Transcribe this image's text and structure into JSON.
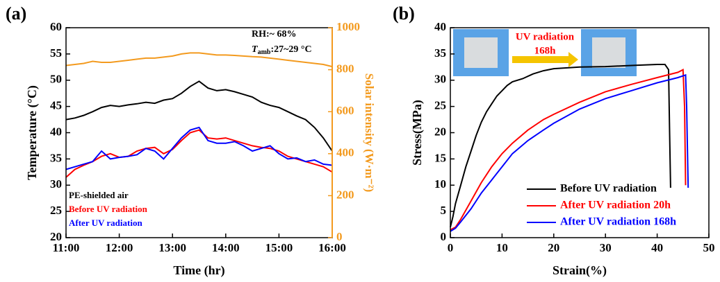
{
  "chart_data": [
    {
      "type": "line",
      "panel_label": "(a)",
      "x_label": "Time (hr)",
      "y_label": "Temperature (°C)",
      "y2_label": "Solar intensity (W·m⁻²)",
      "xlim": [
        11,
        16
      ],
      "ylim": [
        20,
        60
      ],
      "y2lim": [
        0,
        1000
      ],
      "xticks": [
        {
          "value": 11,
          "label": "11:00"
        },
        {
          "value": 12,
          "label": "12:00"
        },
        {
          "value": 13,
          "label": "13:00"
        },
        {
          "value": 14,
          "label": "14:00"
        },
        {
          "value": 15,
          "label": "15:00"
        },
        {
          "value": 16,
          "label": "16:00"
        }
      ],
      "yticks": [
        20,
        25,
        30,
        35,
        40,
        45,
        50,
        55,
        60
      ],
      "y2ticks": [
        0,
        200,
        400,
        600,
        800,
        1000
      ],
      "y2color": "#f39a1e",
      "annotations": [
        "RH:~ 68%",
        {
          "symbol": "T",
          "subscript": "amb",
          "text": ":27~29 °C"
        }
      ],
      "legend": "lower left",
      "x": [
        11,
        11.1667,
        11.3333,
        11.5,
        11.6667,
        11.8333,
        12,
        12.1667,
        12.3333,
        12.5,
        12.6667,
        12.8333,
        13,
        13.1667,
        13.3333,
        13.5,
        13.6667,
        13.8333,
        14,
        14.1667,
        14.3333,
        14.5,
        14.6667,
        14.8333,
        15,
        15.1667,
        15.3333,
        15.5,
        15.6667,
        15.8333,
        16
      ],
      "series": [
        {
          "name": "PE-shielded air",
          "color": "#000000",
          "values": [
            42.5,
            42.8,
            43.3,
            44,
            44.8,
            45.2,
            45,
            45.3,
            45.5,
            45.8,
            45.6,
            46.2,
            46.5,
            47.5,
            48.8,
            49.8,
            48.5,
            48,
            48.2,
            47.8,
            47.3,
            46.8,
            45.8,
            45.2,
            44.8,
            44,
            43.2,
            42.5,
            41,
            39,
            36.5
          ]
        },
        {
          "name": "Before UV radiation",
          "color": "#ff0000",
          "values": [
            31.5,
            33,
            33.8,
            34.5,
            35.5,
            36,
            35.3,
            35.5,
            36.5,
            37,
            37.2,
            36,
            36.8,
            38.5,
            40,
            40.5,
            39,
            38.8,
            39,
            38.5,
            38,
            37.5,
            37.2,
            37,
            36.5,
            35.5,
            35,
            34.5,
            34,
            33.5,
            32.5
          ]
        },
        {
          "name": "After UV radiation",
          "color": "#0000ff",
          "values": [
            33,
            33.5,
            34,
            34.5,
            36.5,
            35,
            35.3,
            35.5,
            35.8,
            37,
            36.5,
            35,
            37,
            39,
            40.5,
            41,
            38.5,
            38,
            38,
            38.3,
            37.5,
            36.5,
            37,
            37.5,
            36,
            35,
            35.2,
            34.5,
            34.8,
            34,
            33.8
          ]
        },
        {
          "name": null,
          "color": "#f39a1e",
          "axis": "y2",
          "values": [
            820,
            825,
            830,
            840,
            835,
            835,
            840,
            845,
            850,
            855,
            855,
            860,
            865,
            875,
            880,
            880,
            875,
            870,
            870,
            868,
            865,
            862,
            860,
            855,
            850,
            845,
            840,
            835,
            830,
            825,
            815
          ]
        }
      ]
    },
    {
      "type": "line",
      "panel_label": "(b)",
      "x_label": "Strain(%)",
      "y_label": "Stress(MPa)",
      "xlim": [
        0,
        50
      ],
      "ylim": [
        0,
        40
      ],
      "xticks": [
        0,
        10,
        20,
        30,
        40,
        50
      ],
      "yticks": [
        0,
        5,
        10,
        15,
        20,
        25,
        30,
        35,
        40
      ],
      "inset": [
        "UV radiation",
        "168h"
      ],
      "legend": "lower right",
      "series": [
        {
          "name": "Before UV radiation",
          "color": "#000000",
          "x": [
            0,
            0.5,
            1,
            2,
            3,
            4,
            5,
            6,
            7,
            8,
            9,
            10,
            11,
            12,
            14,
            16,
            18,
            20,
            25,
            30,
            35,
            40,
            41.5,
            42.2,
            42.4,
            42.6
          ],
          "values": [
            2,
            4,
            6.5,
            10,
            13.5,
            16.5,
            19.5,
            22,
            24,
            25.5,
            27,
            28,
            29,
            29.7,
            30.3,
            31.2,
            31.8,
            32.2,
            32.5,
            32.6,
            32.8,
            33,
            33,
            32,
            20,
            9.5
          ]
        },
        {
          "name": "After UV radiation 20h",
          "color": "#ff0000",
          "x": [
            0,
            1,
            2,
            4,
            6,
            8,
            10,
            12,
            15,
            18,
            20,
            25,
            30,
            35,
            40,
            44,
            45,
            45.3,
            45.5
          ],
          "values": [
            1.5,
            2,
            3.5,
            7,
            10.5,
            13.5,
            16,
            18,
            20.5,
            22.5,
            23.5,
            25.8,
            27.8,
            29.2,
            30.5,
            31.5,
            32,
            25,
            10
          ]
        },
        {
          "name": "After UV radiation 168h",
          "color": "#0000ff",
          "x": [
            0,
            1,
            2,
            4,
            6,
            8,
            10,
            12,
            15,
            18,
            20,
            25,
            30,
            35,
            40,
            44,
            45.5,
            45.7,
            46
          ],
          "values": [
            1.2,
            1.8,
            3,
            5.5,
            8.5,
            11,
            13.5,
            16,
            18.5,
            20.5,
            21.8,
            24.5,
            26.5,
            28,
            29.5,
            30.5,
            31,
            25,
            9.5
          ]
        }
      ]
    }
  ]
}
